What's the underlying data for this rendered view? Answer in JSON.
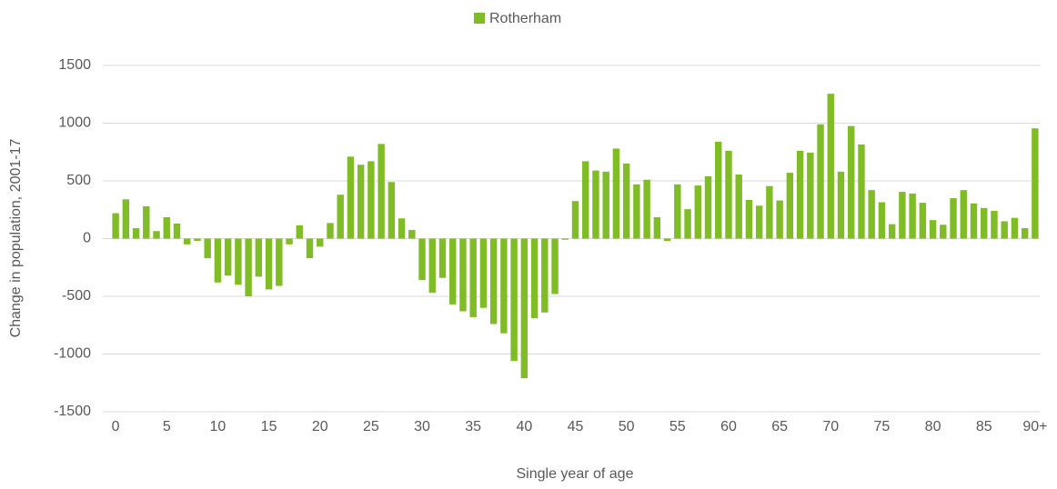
{
  "chart_data": {
    "type": "bar",
    "x_label": "Single year of age",
    "y_label": "Change in population, 2001-17",
    "categories": [
      "0",
      null,
      null,
      null,
      null,
      "5",
      null,
      null,
      null,
      null,
      "10",
      null,
      null,
      null,
      null,
      "15",
      null,
      null,
      null,
      null,
      "20",
      null,
      null,
      null,
      null,
      "25",
      null,
      null,
      null,
      null,
      "30",
      null,
      null,
      null,
      null,
      "35",
      null,
      null,
      null,
      null,
      "40",
      null,
      null,
      null,
      null,
      "45",
      null,
      null,
      null,
      null,
      "50",
      null,
      null,
      null,
      null,
      "55",
      null,
      null,
      null,
      null,
      "60",
      null,
      null,
      null,
      null,
      "65",
      null,
      null,
      null,
      null,
      "70",
      null,
      null,
      null,
      null,
      "75",
      null,
      null,
      null,
      null,
      "80",
      null,
      null,
      null,
      null,
      "85",
      null,
      null,
      null,
      null,
      "90+"
    ],
    "series": [
      {
        "name": "Rotherham",
        "color": "#80bc26",
        "values": [
          220,
          340,
          90,
          280,
          65,
          185,
          130,
          -50,
          -20,
          -170,
          -380,
          -320,
          -400,
          -500,
          -330,
          -440,
          -410,
          -50,
          115,
          -170,
          -70,
          135,
          380,
          710,
          640,
          670,
          820,
          490,
          175,
          75,
          -360,
          -470,
          -340,
          -570,
          -630,
          -680,
          -600,
          -740,
          -820,
          -1060,
          -1210,
          -690,
          -640,
          -480,
          -10,
          325,
          670,
          590,
          580,
          780,
          650,
          470,
          510,
          185,
          -20,
          470,
          255,
          460,
          540,
          840,
          760,
          555,
          335,
          285,
          455,
          330,
          570,
          760,
          745,
          990,
          1255,
          580,
          975,
          815,
          420,
          315,
          125,
          405,
          390,
          310,
          160,
          120,
          350,
          420,
          305,
          265,
          240,
          150,
          180,
          90,
          955
        ]
      }
    ],
    "ylim": [
      -1500,
      1500
    ],
    "yticks": [
      -1500,
      -1000,
      -500,
      0,
      500,
      1000,
      1500
    ],
    "grid": true,
    "legend": "top"
  }
}
